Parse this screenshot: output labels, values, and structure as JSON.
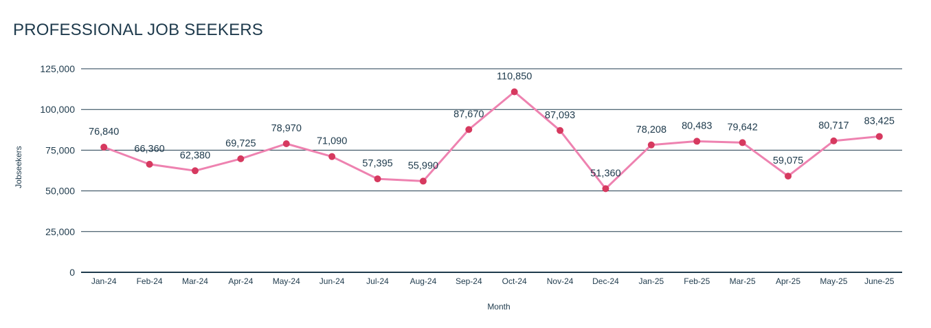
{
  "title": "PROFESSIONAL JOB SEEKERS",
  "colors": {
    "line": "#ee82b0",
    "marker": "#d6395f",
    "gridline": "#1e3a4c",
    "text": "#1e3a4c"
  },
  "chart_data": {
    "type": "line",
    "title": "PROFESSIONAL JOB SEEKERS",
    "xlabel": "Month",
    "ylabel": "Jobseekers",
    "ylim": [
      0,
      125000
    ],
    "yticks": [
      0,
      25000,
      50000,
      75000,
      100000,
      125000
    ],
    "ytick_labels": [
      "0",
      "25,000",
      "50,000",
      "75,000",
      "100,000",
      "125,000"
    ],
    "grid": true,
    "legend": "none",
    "categories": [
      "Jan-24",
      "Feb-24",
      "Mar-24",
      "Apr-24",
      "May-24",
      "Jun-24",
      "Jul-24",
      "Aug-24",
      "Sep-24",
      "Oct-24",
      "Nov-24",
      "Dec-24",
      "Jan-25",
      "Feb-25",
      "Mar-25",
      "Apr-25",
      "May-25",
      "June-25"
    ],
    "series": [
      {
        "values": [
          76840,
          66360,
          62380,
          69725,
          78970,
          71090,
          57395,
          55990,
          87670,
          110850,
          87093,
          51360,
          78208,
          80483,
          79642,
          59075,
          80717,
          83425
        ],
        "labels": [
          "76,840",
          "66,360",
          "62,380",
          "69,725",
          "78,970",
          "71,090",
          "57,395",
          "55,990",
          "87,670",
          "110,850",
          "87,093",
          "51,360",
          "78,208",
          "80,483",
          "79,642",
          "59,075",
          "80,717",
          "83,425"
        ]
      }
    ]
  }
}
